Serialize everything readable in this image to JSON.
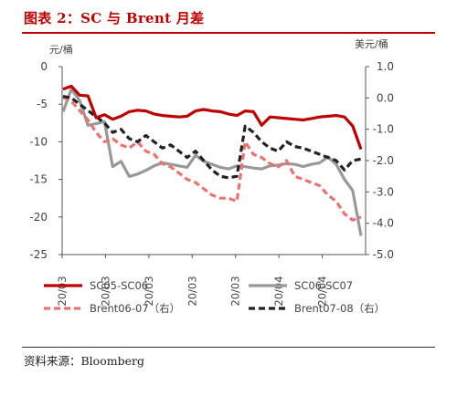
{
  "header": {
    "title": "图表 2：SC 与 Brent 月差"
  },
  "footer": {
    "source": "资料来源：Bloomberg"
  },
  "chart_data": {
    "type": "line",
    "title": "",
    "left_axis": {
      "unit": "元/桶",
      "ylim": [
        -25,
        0
      ],
      "ticks": [
        "0",
        "-5",
        "-10",
        "-15",
        "-20",
        "-25"
      ],
      "tick_values": [
        0,
        -5,
        -10,
        -15,
        -20,
        -25
      ]
    },
    "right_axis": {
      "unit": "美元/桶",
      "ylim": [
        -5.0,
        1.0
      ],
      "ticks": [
        "1.0",
        "0.0",
        "-1.0",
        "-2.0",
        "-3.0",
        "-4.0",
        "-5.0"
      ],
      "tick_values": [
        1,
        0,
        -1,
        -2,
        -3,
        -4,
        -5
      ]
    },
    "x_ticks": [
      "20/03",
      "20/03",
      "20/03",
      "20/03",
      "20/03",
      "20/04",
      "20/04"
    ],
    "grid": false,
    "legend_position": "bottom",
    "series": [
      {
        "name": "SC05-SC06",
        "axis": "left",
        "color": "#c00000",
        "style": "solid",
        "values": [
          -3.0,
          -2.6,
          -3.8,
          -3.9,
          -6.8,
          -6.4,
          -7.0,
          -6.6,
          -6.0,
          -5.8,
          -5.9,
          -6.3,
          -6.5,
          -6.6,
          -6.7,
          -6.6,
          -5.9,
          -5.7,
          -5.9,
          -6.0,
          -6.3,
          -6.5,
          -5.9,
          -6.0,
          -7.8,
          -6.7,
          -6.8,
          -6.9,
          -7.0,
          -7.1,
          -6.9,
          -6.7,
          -6.6,
          -6.5,
          -6.7,
          -7.9,
          -11.0
        ]
      },
      {
        "name": "SC06-SC07",
        "axis": "left",
        "color": "#999999",
        "style": "solid",
        "values": [
          -6.0,
          -3.0,
          -4.5,
          -7.8,
          -7.6,
          -7.3,
          -13.3,
          -12.6,
          -14.6,
          -14.3,
          -13.8,
          -13.2,
          -12.8,
          -13.0,
          -13.2,
          -13.4,
          -11.8,
          -12.6,
          -13.0,
          -13.4,
          -13.6,
          -13.2,
          -13.3,
          -13.5,
          -13.6,
          -13.2,
          -13.1,
          -12.9,
          -13.0,
          -13.3,
          -13.0,
          -12.8,
          -12.0,
          -13.0,
          -15.0,
          -16.5,
          -22.5
        ]
      },
      {
        "name": "Brent06-07（右）",
        "axis": "right",
        "color": "#f07070",
        "style": "dashed",
        "values": [
          0.02,
          -0.1,
          -0.4,
          -0.7,
          -1.1,
          -1.4,
          -1.3,
          -1.5,
          -1.6,
          -1.4,
          -1.7,
          -1.8,
          -2.1,
          -2.2,
          -2.4,
          -2.6,
          -2.7,
          -2.9,
          -3.1,
          -3.2,
          -3.2,
          -3.3,
          -1.4,
          -1.8,
          -1.9,
          -2.1,
          -2.2,
          -2.0,
          -2.5,
          -2.6,
          -2.7,
          -2.8,
          -3.1,
          -3.3,
          -3.7,
          -3.9,
          -3.8
        ]
      },
      {
        "name": "Brent07-08（右）",
        "axis": "right",
        "color": "#222222",
        "style": "dashed",
        "values": [
          0.05,
          0.0,
          -0.2,
          -0.4,
          -0.6,
          -0.8,
          -1.1,
          -1.0,
          -1.3,
          -1.4,
          -1.2,
          -1.4,
          -1.6,
          -1.5,
          -1.7,
          -1.9,
          -1.7,
          -2.0,
          -2.3,
          -2.5,
          -2.55,
          -2.5,
          -0.9,
          -1.1,
          -1.4,
          -1.6,
          -1.7,
          -1.4,
          -1.55,
          -1.6,
          -1.7,
          -1.8,
          -1.9,
          -2.0,
          -2.3,
          -2.0,
          -1.95
        ]
      }
    ]
  }
}
